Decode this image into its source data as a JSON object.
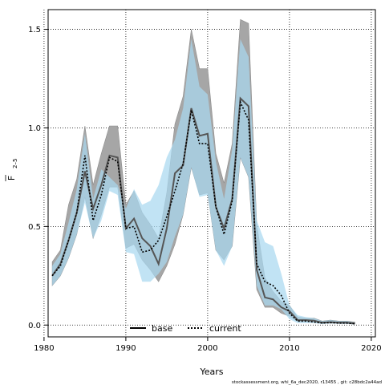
{
  "chart_data": {
    "type": "line",
    "ylabel_main": "F",
    "ylabel_sub": "2–5",
    "xlabel": "Years",
    "footer": "stockassessment.org, whi_6a_dec2020, r13455 , git: c28bdc2a44ad",
    "xlim": [
      1980.5,
      2020.5
    ],
    "ylim": [
      -0.06,
      1.6
    ],
    "x_ticks": [
      1980,
      1990,
      2000,
      2010,
      2020
    ],
    "x_tick_labels": [
      "1980",
      "1990",
      "2000",
      "2010",
      "2020"
    ],
    "y_ticks": [
      0.0,
      0.5,
      1.0,
      1.5
    ],
    "y_tick_labels": [
      "0.0",
      "0.5",
      "1.0",
      "1.5"
    ],
    "grid": true,
    "legend_placement": "bottom-center",
    "legend": [
      "base",
      "current"
    ],
    "colors": {
      "base_band": "#a6a6a6",
      "current_band": "#a9d8f0",
      "overlap_band": "#99c0d4",
      "base_line": "#000000",
      "current_line": "#000000"
    },
    "x": [
      1981,
      1982,
      1983,
      1984,
      1985,
      1986,
      1987,
      1988,
      1989,
      1990,
      1991,
      1992,
      1993,
      1994,
      1995,
      1996,
      1997,
      1998,
      1999,
      2000,
      2001,
      2002,
      2003,
      2004,
      2005,
      2006,
      2007,
      2008,
      2009,
      2010,
      2011,
      2012,
      2013,
      2014,
      2015,
      2016,
      2017,
      2018
    ],
    "series": [
      {
        "name": "base",
        "style": "solid",
        "values": [
          0.25,
          0.31,
          0.43,
          0.57,
          0.78,
          0.59,
          0.71,
          0.86,
          0.85,
          0.49,
          0.54,
          0.44,
          0.4,
          0.31,
          0.49,
          0.77,
          0.81,
          1.1,
          0.96,
          0.97,
          0.6,
          0.49,
          0.64,
          1.15,
          1.11,
          0.28,
          0.14,
          0.13,
          0.09,
          0.07,
          0.025,
          0.025,
          0.022,
          0.012,
          0.015,
          0.012,
          0.012,
          0.008
        ],
        "lower": [
          0.2,
          0.25,
          0.34,
          0.46,
          0.65,
          0.44,
          0.56,
          0.7,
          0.7,
          0.39,
          0.41,
          0.33,
          0.28,
          0.22,
          0.3,
          0.41,
          0.56,
          0.8,
          0.66,
          0.67,
          0.38,
          0.33,
          0.4,
          0.85,
          0.75,
          0.18,
          0.09,
          0.09,
          0.06,
          0.045,
          0.018,
          0.018,
          0.015,
          0.008,
          0.01,
          0.008,
          0.008,
          0.005
        ],
        "upper": [
          0.32,
          0.38,
          0.61,
          0.74,
          1.01,
          0.71,
          0.87,
          1.01,
          1.01,
          0.61,
          0.68,
          0.57,
          0.51,
          0.44,
          0.67,
          1.02,
          1.16,
          1.5,
          1.3,
          1.3,
          0.87,
          0.72,
          0.92,
          1.55,
          1.53,
          0.51,
          0.24,
          0.17,
          0.12,
          0.1,
          0.04,
          0.035,
          0.035,
          0.02,
          0.025,
          0.02,
          0.02,
          0.015
        ]
      },
      {
        "name": "current",
        "style": "dotted",
        "values": [
          0.25,
          0.3,
          0.43,
          0.57,
          0.86,
          0.53,
          0.66,
          0.85,
          0.83,
          0.49,
          0.5,
          0.37,
          0.38,
          0.43,
          0.55,
          0.68,
          0.82,
          1.09,
          0.92,
          0.92,
          0.6,
          0.46,
          0.63,
          1.13,
          1.04,
          0.31,
          0.22,
          0.2,
          0.15,
          0.06,
          0.02,
          0.02,
          0.015,
          0.01,
          0.012,
          0.01,
          0.01,
          0.006
        ],
        "lower": [
          0.2,
          0.25,
          0.34,
          0.46,
          0.62,
          0.44,
          0.53,
          0.68,
          0.66,
          0.37,
          0.36,
          0.22,
          0.22,
          0.26,
          0.32,
          0.45,
          0.56,
          0.8,
          0.65,
          0.66,
          0.38,
          0.3,
          0.4,
          0.85,
          0.75,
          0.2,
          0.1,
          0.1,
          0.08,
          0.03,
          0.01,
          0.01,
          0.01,
          0.005,
          0.008,
          0.006,
          0.006,
          0.003
        ],
        "upper": [
          0.3,
          0.36,
          0.52,
          0.69,
          0.97,
          0.64,
          0.79,
          0.75,
          0.71,
          0.59,
          0.69,
          0.61,
          0.63,
          0.71,
          0.85,
          0.94,
          1.1,
          1.45,
          1.21,
          1.17,
          0.83,
          0.64,
          0.89,
          1.45,
          1.36,
          0.53,
          0.42,
          0.4,
          0.26,
          0.1,
          0.05,
          0.04,
          0.035,
          0.02,
          0.025,
          0.02,
          0.02,
          0.012
        ]
      }
    ]
  }
}
